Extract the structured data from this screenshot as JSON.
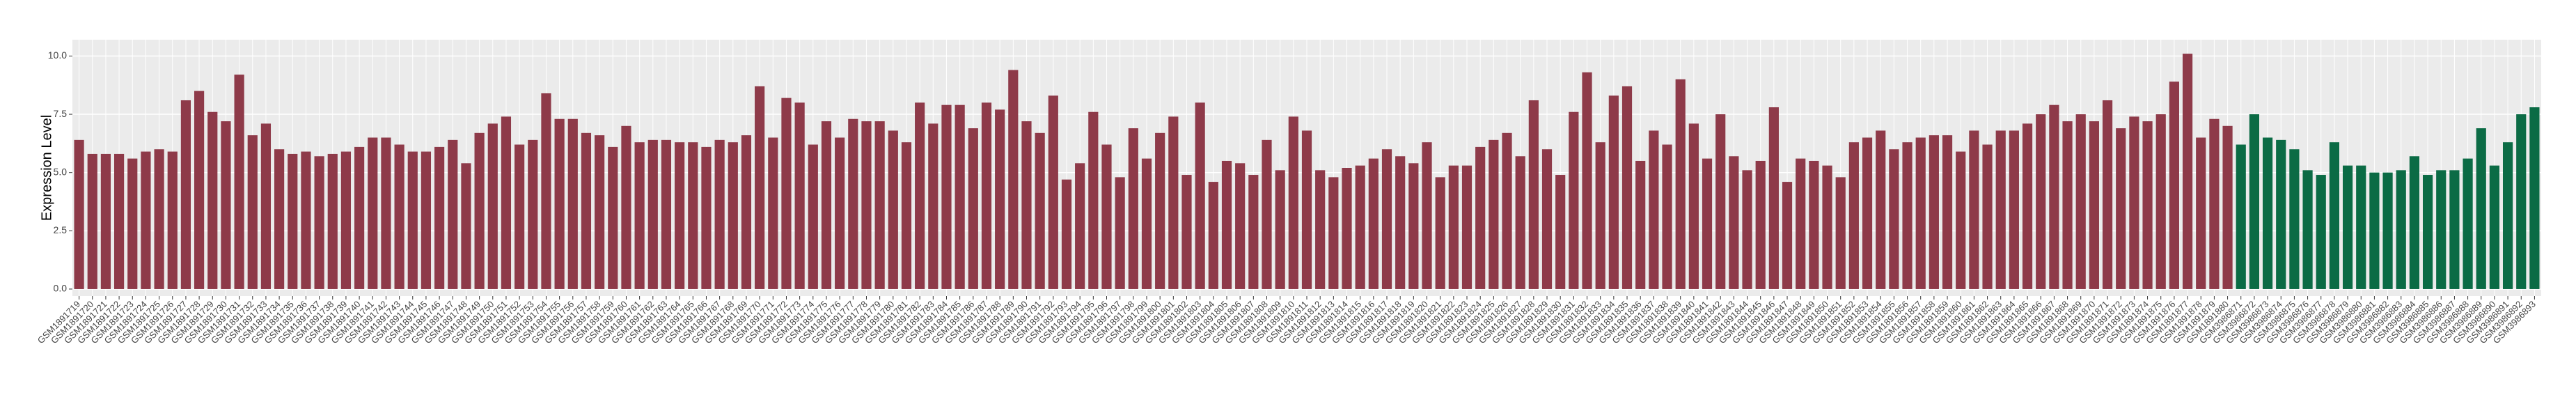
{
  "chart_data": {
    "type": "bar",
    "y_label": "Expression Level",
    "ylim": [
      -0.3,
      10.7
    ],
    "yticks": [
      {
        "value": 0,
        "label": "0.0"
      },
      {
        "value": 2.5,
        "label": "2.5"
      },
      {
        "value": 5,
        "label": "5.0"
      },
      {
        "value": 7.5,
        "label": "7.5"
      },
      {
        "value": 10,
        "label": "10.0"
      }
    ],
    "grid": true,
    "groups": [
      {
        "color": "#8e3a49",
        "categories": [
          "GSM1891719",
          "GSM1891720",
          "GSM1891721",
          "GSM1891722",
          "GSM1891723",
          "GSM1891724",
          "GSM1891725",
          "GSM1891726",
          "GSM1891727",
          "GSM1891728",
          "GSM1891729",
          "GSM1891730",
          "GSM1891731",
          "GSM1891732",
          "GSM1891733",
          "GSM1891734",
          "GSM1891735",
          "GSM1891736",
          "GSM1891737",
          "GSM1891738",
          "GSM1891739",
          "GSM1891740",
          "GSM1891741",
          "GSM1891742",
          "GSM1891743",
          "GSM1891744",
          "GSM1891745",
          "GSM1891746",
          "GSM1891747",
          "GSM1891748",
          "GSM1891749",
          "GSM1891750",
          "GSM1891751",
          "GSM1891752",
          "GSM1891753",
          "GSM1891754",
          "GSM1891755",
          "GSM1891756",
          "GSM1891757",
          "GSM1891758",
          "GSM1891759",
          "GSM1891760",
          "GSM1891761",
          "GSM1891762",
          "GSM1891763",
          "GSM1891764",
          "GSM1891765",
          "GSM1891766",
          "GSM1891767",
          "GSM1891768",
          "GSM1891769",
          "GSM1891770",
          "GSM1891771",
          "GSM1891772",
          "GSM1891773",
          "GSM1891774",
          "GSM1891775",
          "GSM1891776",
          "GSM1891777",
          "GSM1891778",
          "GSM1891779",
          "GSM1891780",
          "GSM1891781",
          "GSM1891782",
          "GSM1891783",
          "GSM1891784",
          "GSM1891785",
          "GSM1891786",
          "GSM1891787",
          "GSM1891788",
          "GSM1891789",
          "GSM1891790",
          "GSM1891791",
          "GSM1891792",
          "GSM1891793",
          "GSM1891794",
          "GSM1891795",
          "GSM1891796",
          "GSM1891797",
          "GSM1891798",
          "GSM1891799",
          "GSM1891800",
          "GSM1891801",
          "GSM1891802",
          "GSM1891803",
          "GSM1891804",
          "GSM1891805",
          "GSM1891806",
          "GSM1891807",
          "GSM1891808",
          "GSM1891809",
          "GSM1891810",
          "GSM1891811",
          "GSM1891812",
          "GSM1891813",
          "GSM1891814",
          "GSM1891815",
          "GSM1891816",
          "GSM1891817",
          "GSM1891818",
          "GSM1891819",
          "GSM1891820",
          "GSM1891821",
          "GSM1891822",
          "GSM1891823",
          "GSM1891824",
          "GSM1891825",
          "GSM1891826",
          "GSM1891827",
          "GSM1891828",
          "GSM1891829",
          "GSM1891830",
          "GSM1891831",
          "GSM1891832",
          "GSM1891833",
          "GSM1891834",
          "GSM1891835",
          "GSM1891836",
          "GSM1891837",
          "GSM1891838",
          "GSM1891839",
          "GSM1891840",
          "GSM1891841",
          "GSM1891842",
          "GSM1891843",
          "GSM1891844",
          "GSM1891845",
          "GSM1891846",
          "GSM1891847",
          "GSM1891848",
          "GSM1891849",
          "GSM1891850",
          "GSM1891851",
          "GSM1891852",
          "GSM1891853",
          "GSM1891854",
          "GSM1891855",
          "GSM1891856",
          "GSM1891857",
          "GSM1891858",
          "GSM1891859",
          "GSM1891860",
          "GSM1891861",
          "GSM1891862",
          "GSM1891863",
          "GSM1891864",
          "GSM1891865",
          "GSM1891866",
          "GSM1891867",
          "GSM1891868",
          "GSM1891869",
          "GSM1891870",
          "GSM1891871",
          "GSM1891872",
          "GSM1891873",
          "GSM1891874",
          "GSM1891875",
          "GSM1891876",
          "GSM1891877",
          "GSM1891878",
          "GSM1891879",
          "GSM1891880"
        ],
        "values": [
          6.4,
          5.8,
          5.8,
          5.8,
          5.6,
          5.9,
          6.0,
          5.9,
          8.1,
          8.5,
          7.6,
          7.2,
          9.2,
          6.6,
          7.1,
          6.0,
          5.8,
          5.9,
          5.7,
          5.8,
          5.9,
          6.1,
          6.5,
          6.5,
          6.2,
          5.9,
          5.9,
          6.1,
          6.4,
          5.4,
          6.7,
          7.1,
          7.4,
          6.2,
          6.4,
          8.4,
          7.3,
          7.3,
          6.7,
          6.6,
          6.1,
          7.0,
          6.3,
          6.4,
          6.4,
          6.3,
          6.3,
          6.1,
          6.4,
          6.3,
          6.6,
          8.7,
          6.5,
          8.2,
          8.0,
          6.2,
          7.2,
          6.5,
          7.3,
          7.2,
          7.2,
          6.8,
          6.3,
          8.0,
          7.1,
          7.9,
          7.9,
          6.9,
          8.0,
          7.7,
          9.4,
          7.2,
          6.7,
          8.3,
          4.7,
          5.4,
          7.6,
          6.2,
          4.8,
          6.9,
          5.6,
          6.7,
          7.4,
          4.9,
          8.0,
          4.6,
          5.5,
          5.4,
          4.9,
          6.4,
          5.1,
          7.4,
          6.8,
          5.1,
          4.8,
          5.2,
          5.3,
          5.6,
          6.0,
          5.7,
          5.4,
          6.3,
          4.8,
          5.3,
          5.3,
          6.1,
          6.4,
          6.7,
          5.7,
          8.1,
          6.0,
          4.9,
          7.6,
          9.3,
          6.3,
          8.3,
          8.7,
          5.5,
          6.8,
          6.2,
          9.0,
          7.1,
          5.6,
          7.5,
          5.7,
          5.1,
          5.5,
          7.8,
          4.6,
          5.6,
          5.5,
          5.3,
          4.8,
          6.3,
          6.5,
          6.8,
          6.0,
          6.3,
          6.5,
          6.6,
          6.6,
          5.9,
          6.8,
          6.2,
          6.8,
          6.8,
          7.1,
          7.5,
          7.9,
          7.2,
          7.5,
          7.2,
          8.1,
          6.9,
          7.4,
          7.2,
          7.5,
          8.9,
          10.1,
          6.5,
          7.3,
          7.0
        ]
      },
      {
        "color": "#0b6b45",
        "categories": [
          "GSM3986871",
          "GSM3986872",
          "GSM3986873",
          "GSM3986874",
          "GSM3986875",
          "GSM3986876",
          "GSM3986877",
          "GSM3986878",
          "GSM3986879",
          "GSM3986880",
          "GSM3986881",
          "GSM3986882",
          "GSM3986883",
          "GSM3986884",
          "GSM3986885",
          "GSM3986886",
          "GSM3986887",
          "GSM3986888",
          "GSM3986889",
          "GSM3986890",
          "GSM3986891",
          "GSM3986892",
          "GSM3986893"
        ],
        "values": [
          6.2,
          7.5,
          6.5,
          6.4,
          6.0,
          5.1,
          4.9,
          6.3,
          5.3,
          5.3,
          5.0,
          5.0,
          5.1,
          5.7,
          4.9,
          5.1,
          5.1,
          5.6,
          6.9,
          5.3,
          6.3,
          7.5,
          7.8
        ]
      }
    ]
  }
}
